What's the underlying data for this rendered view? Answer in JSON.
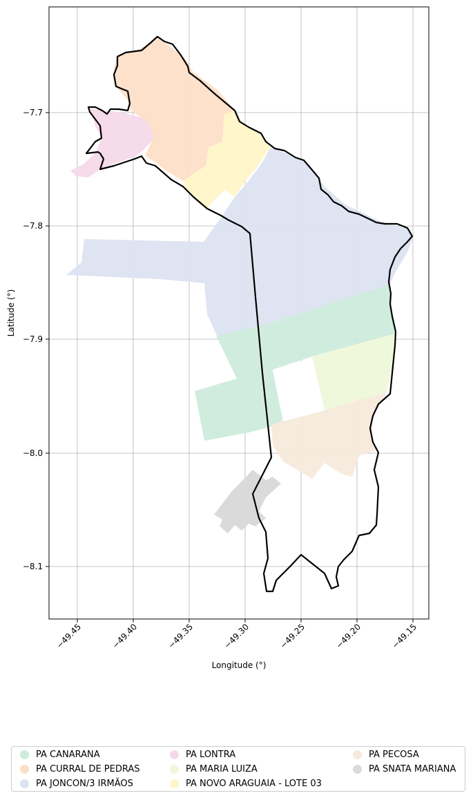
{
  "axes": {
    "xlabel": "Longitude (°)",
    "ylabel": "Latitude (°)",
    "xticks": [
      "−49.45",
      "−49.40",
      "−49.35",
      "−49.30",
      "−49.25",
      "−49.20",
      "−49.15"
    ],
    "yticks": [
      "−7.7",
      "−7.8",
      "−7.9",
      "−8.0",
      "−8.1"
    ]
  },
  "legend": {
    "items": [
      {
        "label": "PA CANARANA",
        "color": "#cdebdc"
      },
      {
        "label": "PA CURRAL DE PEDRAS",
        "color": "#fddfc8"
      },
      {
        "label": "PA JONCON/3 IRMÃOS",
        "color": "#dde3f1"
      },
      {
        "label": "PA LONTRA",
        "color": "#f6d9ea"
      },
      {
        "label": "PA MARIA LUIZA",
        "color": "#eff8da"
      },
      {
        "label": "PA NOVO ARAGUAIA - LOTE 03",
        "color": "#fff6c8"
      },
      {
        "label": "PA PECOSA",
        "color": "#f5eadb"
      },
      {
        "label": "PA SNATA MARIANA",
        "color": "#dadada"
      }
    ]
  },
  "chart_data": {
    "type": "map",
    "xlabel": "Longitude (°)",
    "ylabel": "Latitude (°)",
    "xlim": [
      -49.475,
      -49.14
    ],
    "ylim": [
      -8.147,
      -7.627
    ],
    "grid": true,
    "legend_placement": "bottom",
    "areas": [
      {
        "name": "PA CANARANA",
        "color": "#cdebdc"
      },
      {
        "name": "PA CURRAL DE PEDRAS",
        "color": "#fddfc8"
      },
      {
        "name": "PA JONCON/3 IRMÃOS",
        "color": "#dde3f1"
      },
      {
        "name": "PA LONTRA",
        "color": "#f6d9ea"
      },
      {
        "name": "PA MARIA LUIZA",
        "color": "#eff8da"
      },
      {
        "name": "PA NOVO ARAGUAIA - LOTE 03",
        "color": "#fff6c8"
      },
      {
        "name": "PA PECOSA",
        "color": "#f5eadb"
      },
      {
        "name": "PA SNATA MARIANA",
        "color": "#dadada"
      }
    ]
  }
}
